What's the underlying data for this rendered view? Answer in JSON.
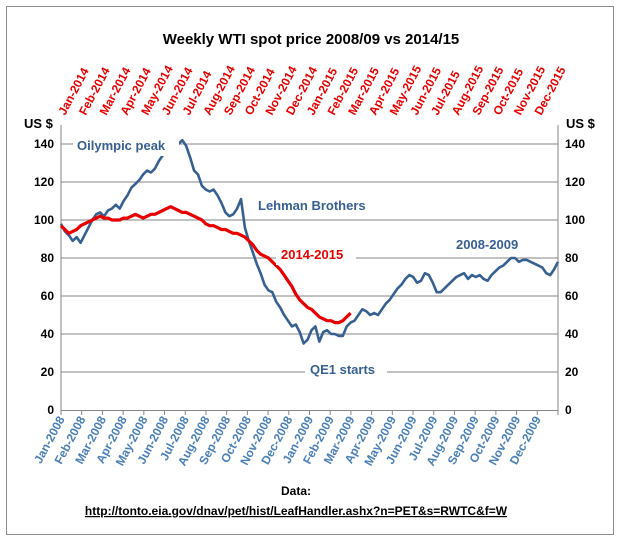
{
  "chart_data": {
    "type": "line",
    "title": "Weekly WTI spot price 2008/09 vs 2014/15",
    "ylabel_left": "US $",
    "ylabel_right": "US $",
    "ylim": [
      0,
      150
    ],
    "yticks": [
      0,
      20,
      40,
      60,
      80,
      100,
      120,
      140
    ],
    "grid": "horizontal",
    "colors": {
      "series_2008": "#376092",
      "series_2014": "#e80000",
      "bottom_axis_labels": "#4a7fb8",
      "top_axis_labels": "#e80000"
    },
    "x_bottom_labels": [
      "Jan-2008",
      "Feb-2008",
      "Mar-2008",
      "Apr-2008",
      "May-2008",
      "Jun-2008",
      "Jul-2008",
      "Aug-2008",
      "Sep-2008",
      "Oct-2008",
      "Nov-2008",
      "Dec-2008",
      "Jan-2009",
      "Feb-2009",
      "Mar-2009",
      "Apr-2009",
      "May-2009",
      "Jun-2009",
      "Jul-2009",
      "Aug-2009",
      "Sep-2009",
      "Oct-2009",
      "Nov-2009",
      "Dec-2009"
    ],
    "x_top_labels": [
      "Jan-2014",
      "Feb-2014",
      "Mar-2014",
      "Apr-2014",
      "May-2014",
      "Jun-2014",
      "Jul-2014",
      "Aug-2014",
      "Sep-2014",
      "Oct-2014",
      "Nov-2014",
      "Dec-2014",
      "Jan-2015",
      "Feb-2015",
      "Mar-2015",
      "Apr-2015",
      "May-2015",
      "Jun-2015",
      "Jul-2015",
      "Aug-2015",
      "Sep-2015",
      "Oct-2015",
      "Nov-2015",
      "Dec-2015"
    ],
    "series": [
      {
        "name": "2008-2009",
        "values": [
          98,
          94,
          92,
          89,
          91,
          88,
          92,
          96,
          100,
          103,
          104,
          102,
          105,
          106,
          108,
          106,
          110,
          113,
          117,
          119,
          121,
          124,
          126,
          125,
          127,
          131,
          134,
          136,
          135,
          138,
          140,
          142,
          139,
          133,
          126,
          124,
          118,
          116,
          115,
          116,
          113,
          109,
          104,
          102,
          103,
          106,
          111,
          96,
          89,
          83,
          77,
          72,
          66,
          63,
          62,
          57,
          54,
          50,
          47,
          44,
          45,
          41,
          35,
          37,
          42,
          44,
          36,
          41,
          42,
          40,
          40,
          39,
          39,
          44,
          46,
          47,
          50,
          53,
          52,
          50,
          51,
          50,
          53,
          56,
          58,
          61,
          64,
          66,
          69,
          71,
          70,
          67,
          68,
          72,
          71,
          67,
          62,
          62,
          64,
          66,
          68,
          70,
          71,
          72,
          69,
          71,
          70,
          71,
          69,
          68,
          71,
          73,
          75,
          76,
          78,
          80,
          80,
          78,
          79,
          79,
          78,
          77,
          76,
          75,
          72,
          71,
          74,
          78
        ]
      },
      {
        "name": "2014-2015",
        "values": [
          97,
          95,
          93,
          94,
          95,
          97,
          98,
          99,
          100,
          101,
          102,
          101,
          101,
          100,
          100,
          100,
          101,
          101,
          102,
          103,
          102,
          101,
          102,
          103,
          103,
          104,
          105,
          106,
          107,
          106,
          105,
          104,
          104,
          103,
          102,
          101,
          100,
          98,
          97,
          97,
          96,
          95,
          95,
          94,
          93,
          93,
          92,
          91,
          89,
          87,
          84,
          82,
          81,
          80,
          78,
          76,
          74,
          71,
          68,
          65,
          61,
          58,
          56,
          54,
          53,
          51,
          49,
          48,
          47,
          47,
          46,
          46,
          47,
          49,
          51
        ]
      }
    ],
    "annotations": [
      "Oilympic peak",
      "Lehman Brothers",
      "2014-2015",
      "2008-2009",
      "QE1 starts"
    ]
  },
  "footer": {
    "data_label": "Data:",
    "url": "http://tonto.eia.gov/dnav/pet/hist/LeafHandler.ashx?n=PET&s=RWTC&f=W"
  }
}
